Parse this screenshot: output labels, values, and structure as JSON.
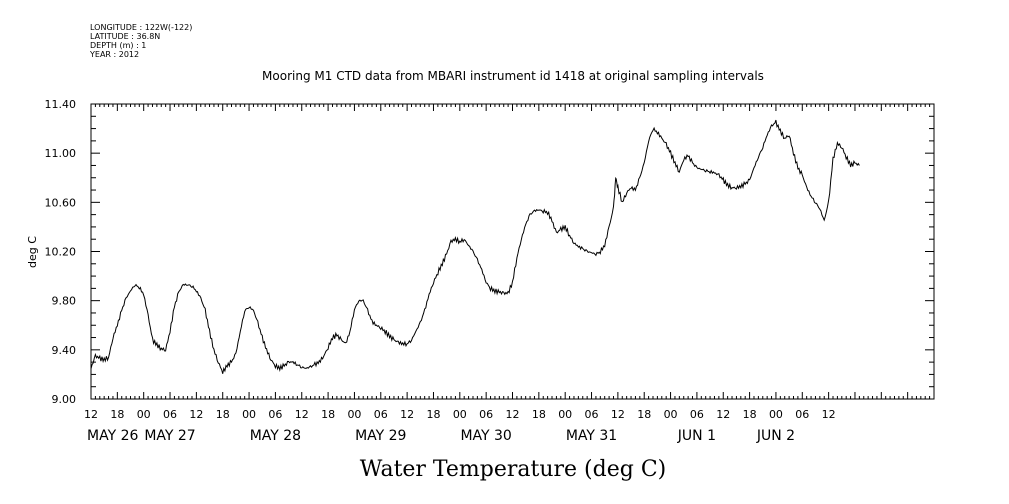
{
  "header_lines": [
    "LONGITUDE : 122W(-122)",
    "LATITUDE : 36.8N",
    "DEPTH (m) : 1",
    "YEAR : 2012"
  ],
  "chart_data": {
    "type": "line",
    "title": "Mooring M1 CTD data from MBARI instrument id 1418 at original sampling intervals",
    "xlabel": "Water Temperature (deg C)",
    "ylabel": "deg C",
    "ylim": [
      9.0,
      11.4
    ],
    "yticks": [
      "9.00",
      "9.40",
      "9.80",
      "10.20",
      "10.60",
      "11.00",
      "11.40"
    ],
    "x_unit": "hours since 2012-05-26 00:00",
    "xlim": [
      12,
      204
    ],
    "hour_ticks": [
      12,
      18,
      0,
      6,
      12,
      18,
      0,
      6,
      12,
      18,
      0,
      6,
      12,
      18,
      0,
      6,
      12,
      18,
      0,
      6,
      12,
      18,
      0,
      6,
      12,
      18,
      0,
      6,
      12
    ],
    "date_labels": [
      {
        "label": "MAY 26",
        "x": 12
      },
      {
        "label": "MAY 27",
        "x": 30
      },
      {
        "label": "MAY 28",
        "x": 54
      },
      {
        "label": "MAY 29",
        "x": 78
      },
      {
        "label": "MAY 30",
        "x": 102
      },
      {
        "label": "MAY 31",
        "x": 126
      },
      {
        "label": "JUN  1",
        "x": 150
      },
      {
        "label": "JUN  2",
        "x": 168
      }
    ],
    "grid": false,
    "series": [
      {
        "values": [
          [
            12,
            9.25
          ],
          [
            13,
            9.35
          ],
          [
            14,
            9.33
          ],
          [
            15,
            9.32
          ],
          [
            16,
            9.34
          ],
          [
            17,
            9.5
          ],
          [
            18,
            9.6
          ],
          [
            19,
            9.72
          ],
          [
            20,
            9.82
          ],
          [
            21,
            9.88
          ],
          [
            22,
            9.93
          ],
          [
            23,
            9.91
          ],
          [
            24,
            9.85
          ],
          [
            25,
            9.68
          ],
          [
            26,
            9.48
          ],
          [
            27,
            9.44
          ],
          [
            28,
            9.41
          ],
          [
            29,
            9.4
          ],
          [
            30,
            9.55
          ],
          [
            31,
            9.75
          ],
          [
            32,
            9.87
          ],
          [
            33,
            9.93
          ],
          [
            34,
            9.93
          ],
          [
            35,
            9.92
          ],
          [
            36,
            9.88
          ],
          [
            37,
            9.82
          ],
          [
            38,
            9.72
          ],
          [
            39,
            9.55
          ],
          [
            40,
            9.4
          ],
          [
            41,
            9.3
          ],
          [
            42,
            9.22
          ],
          [
            43,
            9.27
          ],
          [
            44,
            9.3
          ],
          [
            45,
            9.37
          ],
          [
            46,
            9.55
          ],
          [
            47,
            9.72
          ],
          [
            48,
            9.75
          ],
          [
            49,
            9.72
          ],
          [
            50,
            9.62
          ],
          [
            51,
            9.5
          ],
          [
            52,
            9.4
          ],
          [
            53,
            9.32
          ],
          [
            54,
            9.27
          ],
          [
            55,
            9.25
          ],
          [
            56,
            9.27
          ],
          [
            57,
            9.3
          ],
          [
            58,
            9.3
          ],
          [
            59,
            9.28
          ],
          [
            60,
            9.26
          ],
          [
            61,
            9.25
          ],
          [
            62,
            9.26
          ],
          [
            63,
            9.28
          ],
          [
            64,
            9.3
          ],
          [
            65,
            9.35
          ],
          [
            66,
            9.42
          ],
          [
            67,
            9.5
          ],
          [
            68,
            9.52
          ],
          [
            69,
            9.48
          ],
          [
            70,
            9.45
          ],
          [
            71,
            9.55
          ],
          [
            72,
            9.73
          ],
          [
            73,
            9.8
          ],
          [
            74,
            9.8
          ],
          [
            75,
            9.72
          ],
          [
            76,
            9.63
          ],
          [
            77,
            9.6
          ],
          [
            78,
            9.58
          ],
          [
            79,
            9.55
          ],
          [
            80,
            9.51
          ],
          [
            81,
            9.48
          ],
          [
            82,
            9.46
          ],
          [
            83,
            9.45
          ],
          [
            84,
            9.45
          ],
          [
            85,
            9.48
          ],
          [
            86,
            9.55
          ],
          [
            87,
            9.62
          ],
          [
            88,
            9.72
          ],
          [
            89,
            9.85
          ],
          [
            90,
            9.95
          ],
          [
            91,
            10.03
          ],
          [
            92,
            10.1
          ],
          [
            93,
            10.18
          ],
          [
            94,
            10.28
          ],
          [
            95,
            10.3
          ],
          [
            96,
            10.28
          ],
          [
            97,
            10.3
          ],
          [
            98,
            10.25
          ],
          [
            99,
            10.2
          ],
          [
            100,
            10.13
          ],
          [
            101,
            10.05
          ],
          [
            102,
            9.95
          ],
          [
            103,
            9.9
          ],
          [
            104,
            9.88
          ],
          [
            105,
            9.87
          ],
          [
            106,
            9.86
          ],
          [
            107,
            9.86
          ],
          [
            108,
            9.95
          ],
          [
            109,
            10.15
          ],
          [
            110,
            10.3
          ],
          [
            111,
            10.42
          ],
          [
            112,
            10.5
          ],
          [
            113,
            10.53
          ],
          [
            114,
            10.54
          ],
          [
            115,
            10.53
          ],
          [
            116,
            10.52
          ],
          [
            117,
            10.45
          ],
          [
            118,
            10.35
          ],
          [
            119,
            10.38
          ],
          [
            120,
            10.4
          ],
          [
            121,
            10.33
          ],
          [
            122,
            10.27
          ],
          [
            123,
            10.24
          ],
          [
            124,
            10.22
          ],
          [
            125,
            10.2
          ],
          [
            126,
            10.19
          ],
          [
            127,
            10.18
          ],
          [
            128,
            10.2
          ],
          [
            129,
            10.25
          ],
          [
            130,
            10.4
          ],
          [
            131,
            10.55
          ],
          [
            131.5,
            10.8
          ],
          [
            132,
            10.72
          ],
          [
            133,
            10.6
          ],
          [
            134,
            10.68
          ],
          [
            135,
            10.72
          ],
          [
            136,
            10.7
          ],
          [
            137,
            10.8
          ],
          [
            138,
            10.92
          ],
          [
            139,
            11.1
          ],
          [
            140,
            11.2
          ],
          [
            141,
            11.17
          ],
          [
            142,
            11.12
          ],
          [
            143,
            11.07
          ],
          [
            144,
            11.0
          ],
          [
            145,
            10.92
          ],
          [
            146,
            10.85
          ],
          [
            147,
            10.95
          ],
          [
            148,
            10.98
          ],
          [
            149,
            10.92
          ],
          [
            150,
            10.88
          ],
          [
            151,
            10.87
          ],
          [
            152,
            10.86
          ],
          [
            153,
            10.85
          ],
          [
            154,
            10.84
          ],
          [
            155,
            10.82
          ],
          [
            156,
            10.78
          ],
          [
            157,
            10.74
          ],
          [
            158,
            10.72
          ],
          [
            159,
            10.72
          ],
          [
            160,
            10.73
          ],
          [
            161,
            10.75
          ],
          [
            162,
            10.78
          ],
          [
            163,
            10.88
          ],
          [
            164,
            10.97
          ],
          [
            165,
            11.05
          ],
          [
            166,
            11.15
          ],
          [
            167,
            11.22
          ],
          [
            168,
            11.25
          ],
          [
            169,
            11.18
          ],
          [
            170,
            11.12
          ],
          [
            171,
            11.15
          ],
          [
            172,
            11.0
          ],
          [
            173,
            10.88
          ],
          [
            174,
            10.82
          ],
          [
            175,
            10.72
          ],
          [
            176,
            10.65
          ],
          [
            177,
            10.6
          ],
          [
            178,
            10.55
          ],
          [
            179,
            10.45
          ],
          [
            180,
            10.6
          ],
          [
            181,
            10.95
          ],
          [
            182,
            11.08
          ],
          [
            183,
            11.05
          ],
          [
            184,
            10.97
          ],
          [
            185,
            10.9
          ],
          [
            186,
            10.92
          ],
          [
            187,
            10.9
          ]
        ]
      }
    ]
  }
}
